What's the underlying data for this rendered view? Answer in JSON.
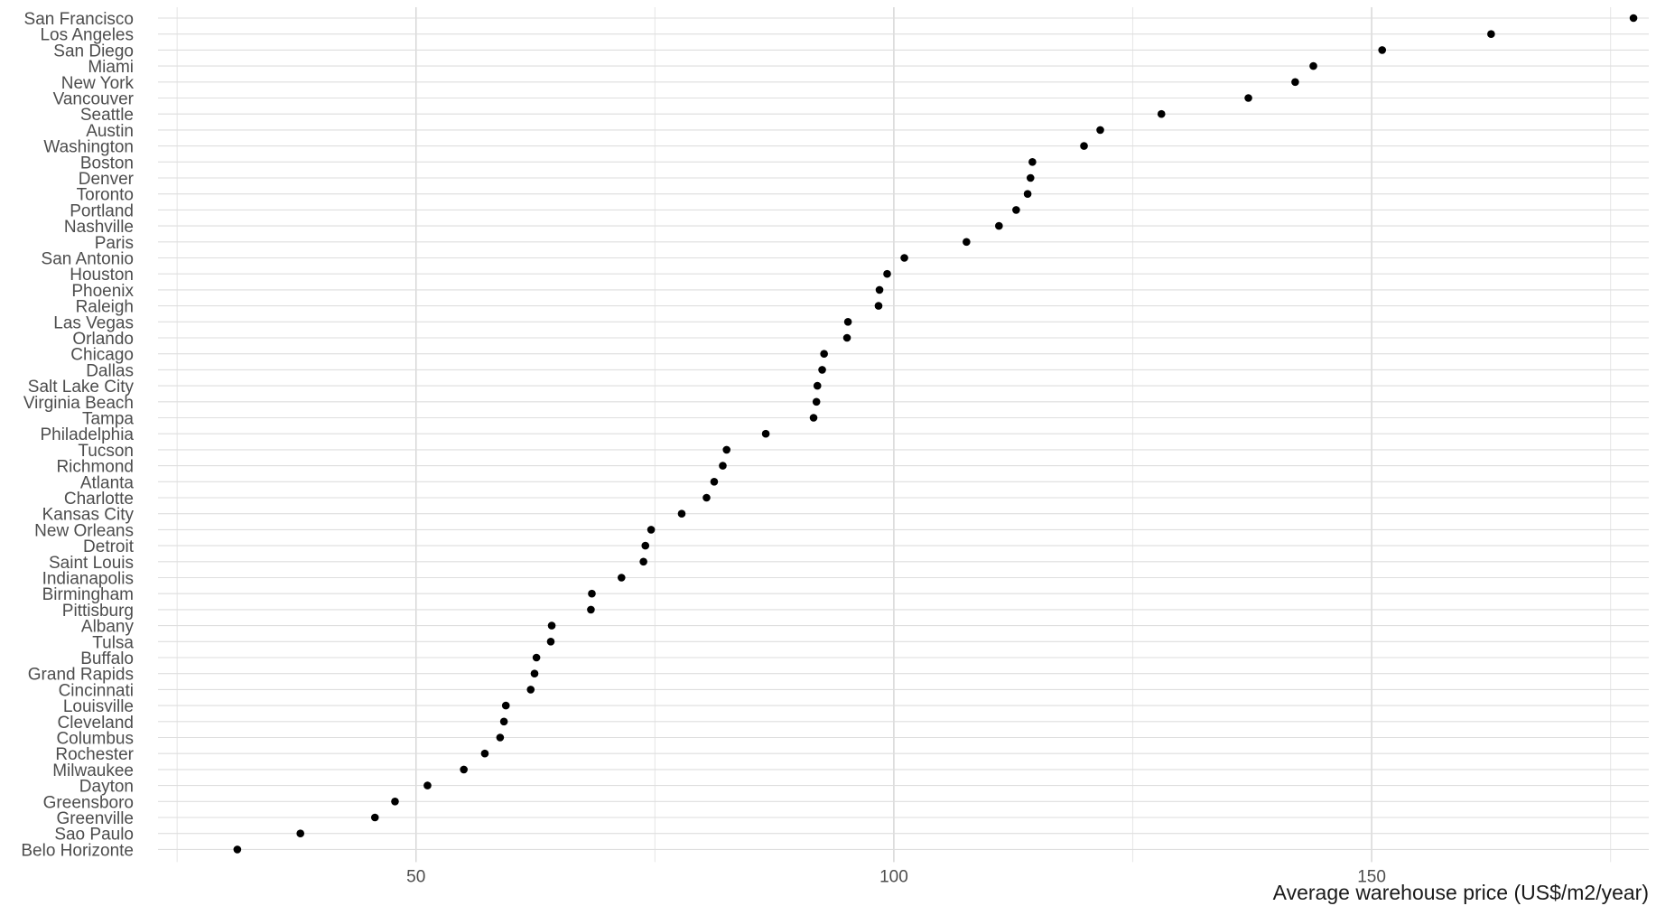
{
  "chart_data": {
    "type": "scatter",
    "title": "",
    "xlabel": "Average warehouse price (US$/m2/year)",
    "ylabel": "",
    "xlim": [
      23,
      179
    ],
    "x_ticks": [
      50,
      100,
      150
    ],
    "x_minor_ticks": [
      25,
      75,
      125,
      175
    ],
    "grid": true,
    "legend": "none",
    "point_color": "#000000",
    "categories": [
      "San Francisco",
      "Los Angeles",
      "San Diego",
      "Miami",
      "New York",
      "Vancouver",
      "Seattle",
      "Austin",
      "Washington",
      "Boston",
      "Denver",
      "Toronto",
      "Portland",
      "Nashville",
      "Paris",
      "San Antonio",
      "Houston",
      "Phoenix",
      "Raleigh",
      "Las Vegas",
      "Orlando",
      "Chicago",
      "Dallas",
      "Salt Lake City",
      "Virginia Beach",
      "Tampa",
      "Philadelphia",
      "Tucson",
      "Richmond",
      "Atlanta",
      "Charlotte",
      "Kansas City",
      "New Orleans",
      "Detroit",
      "Saint Louis",
      "Indianapolis",
      "Birmingham",
      "Pittisburg",
      "Albany",
      "Tulsa",
      "Buffalo",
      "Grand Rapids",
      "Cincinnati",
      "Louisville",
      "Cleveland",
      "Columbus",
      "Rochester",
      "Milwaukee",
      "Dayton",
      "Greensboro",
      "Greenville",
      "Sao Paulo",
      "Belo Horizonte"
    ],
    "values": [
      177.4,
      162.5,
      151.1,
      143.9,
      142.0,
      137.1,
      128.0,
      121.6,
      119.9,
      114.5,
      114.3,
      114.0,
      112.8,
      111.0,
      107.6,
      101.1,
      99.3,
      98.5,
      98.4,
      95.2,
      95.1,
      92.7,
      92.5,
      92.0,
      91.9,
      91.6,
      86.6,
      82.5,
      82.1,
      81.2,
      80.4,
      77.8,
      74.6,
      74.0,
      73.8,
      71.5,
      68.4,
      68.3,
      64.2,
      64.1,
      62.6,
      62.4,
      62.0,
      59.4,
      59.2,
      58.8,
      57.2,
      55.0,
      51.2,
      47.8,
      45.7,
      37.9,
      31.3
    ]
  }
}
